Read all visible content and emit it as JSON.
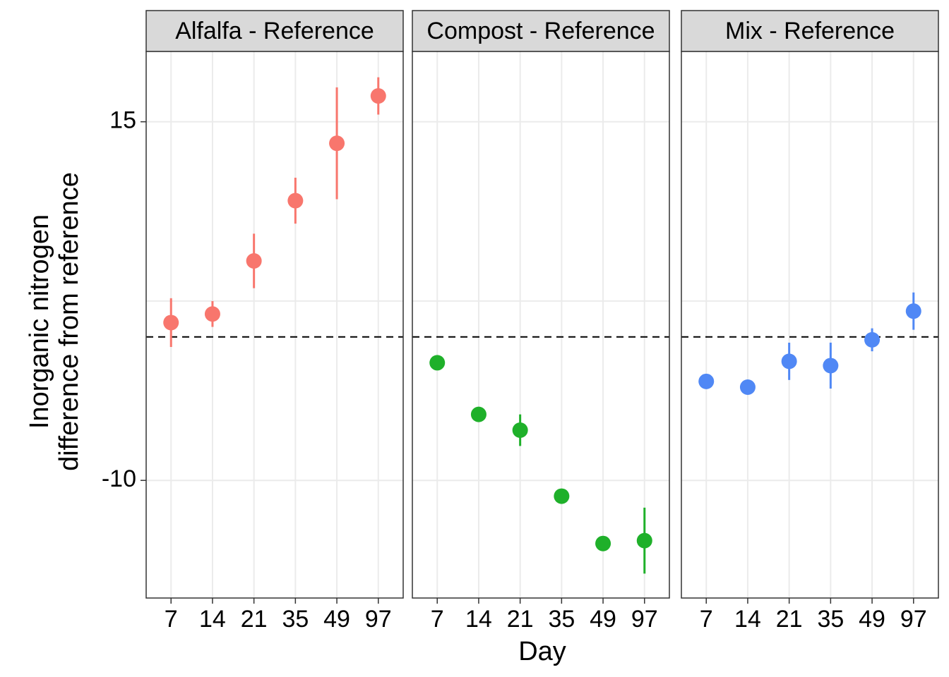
{
  "chart_data": [
    {
      "type": "scatter",
      "title": "Alfalfa - Reference",
      "categories": [
        "7",
        "14",
        "21",
        "35",
        "49",
        "97"
      ],
      "values": [
        1.0,
        1.6,
        5.3,
        9.5,
        13.5,
        16.8
      ],
      "errors": [
        1.7,
        0.9,
        1.9,
        1.6,
        3.9,
        1.3
      ],
      "color": "#f8766d",
      "ylim": [
        -18.2,
        19.9
      ],
      "yticks": [
        -10,
        {
          "value": 2.5,
          "label": null
        },
        15
      ],
      "reference_line": 0,
      "grid": true
    },
    {
      "type": "scatter",
      "title": "Compost - Reference",
      "categories": [
        "7",
        "14",
        "21",
        "35",
        "49",
        "97"
      ],
      "values": [
        -1.8,
        -5.4,
        -6.5,
        -11.1,
        -14.4,
        -14.2
      ],
      "errors": [
        0.3,
        0.3,
        1.1,
        0.3,
        0.3,
        2.3
      ],
      "color": "#1fb02a",
      "ylim": [
        -18.2,
        19.9
      ],
      "yticks": [
        -10,
        {
          "value": 2.5,
          "label": null
        },
        15
      ],
      "reference_line": 0,
      "grid": true
    },
    {
      "type": "scatter",
      "title": "Mix - Reference",
      "categories": [
        "7",
        "14",
        "21",
        "35",
        "49",
        "97"
      ],
      "values": [
        -3.1,
        -3.5,
        -1.7,
        -2.0,
        -0.2,
        1.8
      ],
      "errors": [
        0.3,
        0.3,
        1.3,
        1.6,
        0.8,
        1.3
      ],
      "color": "#5088f5",
      "ylim": [
        -18.2,
        19.9
      ],
      "yticks": [
        -10,
        {
          "value": 2.5,
          "label": null
        },
        15
      ],
      "reference_line": 0,
      "grid": true
    }
  ],
  "ylabel": [
    "Inorganic nitrogen",
    "difference from reference"
  ],
  "xlabel": "Day"
}
